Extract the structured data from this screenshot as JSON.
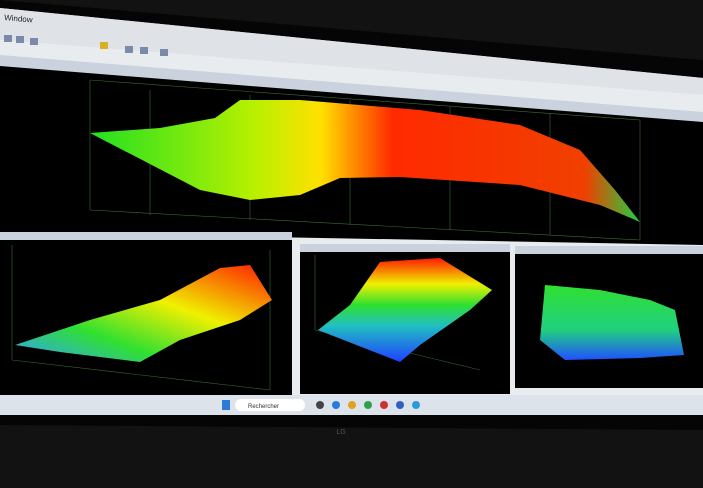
{
  "menu": {
    "item": "Window"
  },
  "taskbar": {
    "search": "Rechercher"
  },
  "brand": "LG"
}
